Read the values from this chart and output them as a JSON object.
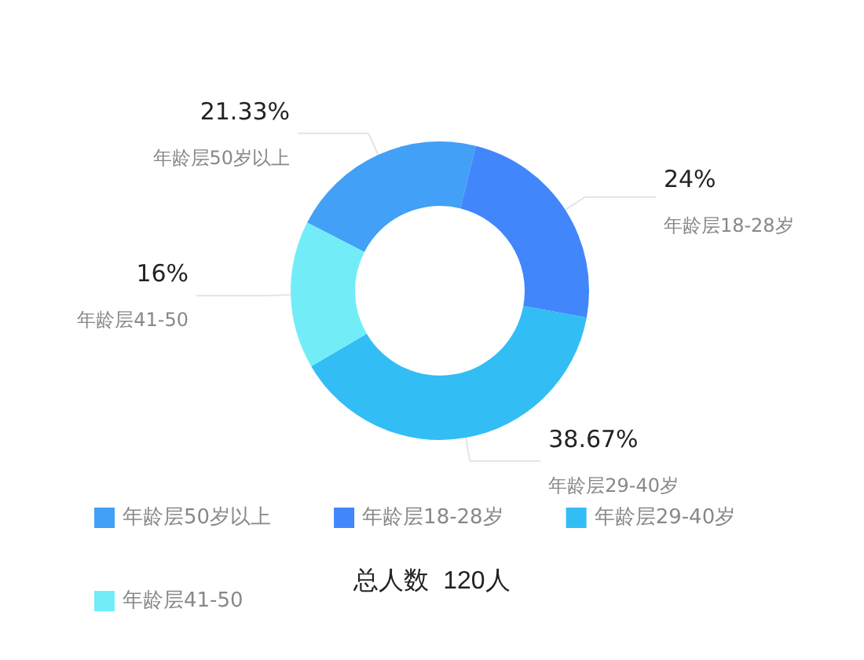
{
  "chart_data": {
    "type": "donut",
    "categories": [
      "年龄层50岁以上",
      "年龄层18-28岁",
      "年龄层29-40岁",
      "年龄层41-50"
    ],
    "values": [
      21.33,
      24,
      38.67,
      16
    ],
    "value_labels": [
      "21.33%",
      "24%",
      "38.67%",
      "16%"
    ],
    "colors": [
      "#42a0f6",
      "#4187fb",
      "#32bdf5",
      "#72edf8"
    ],
    "legend": "bottom",
    "annotations": [
      "总人数  120人"
    ]
  }
}
